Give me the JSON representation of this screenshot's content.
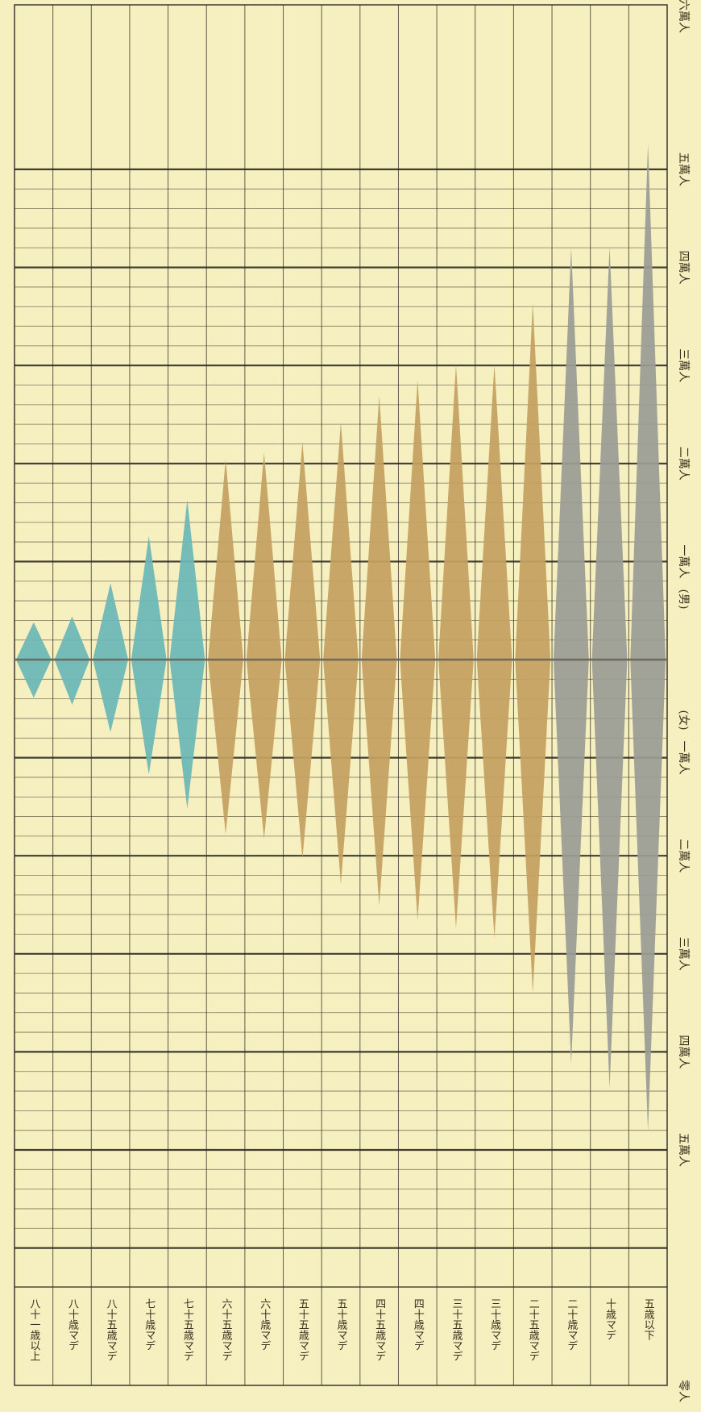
{
  "chart_data": {
    "type": "population_pyramid",
    "orientation": "rotated",
    "axis_labels": [
      "五萬人",
      "四萬人",
      "三萬人",
      "二萬人",
      "一萬人",
      "一萬人",
      "二萬人",
      "三萬人",
      "四萬人",
      "五萬人",
      "六萬人"
    ],
    "sex_labels": {
      "female": "(女)",
      "male": "(男)"
    },
    "axis_end_label": "六萬人",
    "axis_start_label": "零人",
    "unit_people": 10000,
    "colors": {
      "young": "#c4a060",
      "old": "#6ab8b8",
      "child": "#9a9c94",
      "paper": "#f6efbf",
      "grid": "#2e2a22"
    },
    "categories": [
      {
        "label": "八十一歳以上",
        "group": "old",
        "male": 3800,
        "female": 3900
      },
      {
        "label": "八十歳マデ",
        "group": "old",
        "male": 4400,
        "female": 4600
      },
      {
        "label": "八十五歳マデ",
        "group": "old",
        "male": 7800,
        "female": 7400
      },
      {
        "label": "七十歳マデ",
        "group": "old",
        "male": 12600,
        "female": 11700
      },
      {
        "label": "七十五歳マデ",
        "group": "old",
        "male": 16300,
        "female": 15200
      },
      {
        "label": "六十五歳マデ",
        "group": "young",
        "male": 20400,
        "female": 17800
      },
      {
        "label": "六十歳マデ",
        "group": "young",
        "male": 21100,
        "female": 18300
      },
      {
        "label": "五十五歳マデ",
        "group": "young",
        "male": 22200,
        "female": 20300
      },
      {
        "label": "五十歳マデ",
        "group": "young",
        "male": 24200,
        "female": 22900
      },
      {
        "label": "四十五歳マデ",
        "group": "young",
        "male": 26900,
        "female": 25100
      },
      {
        "label": "四十歳マデ",
        "group": "young",
        "male": 28500,
        "female": 26600
      },
      {
        "label": "三十五歳マデ",
        "group": "young",
        "male": 30100,
        "female": 27400
      },
      {
        "label": "三十歳マデ",
        "group": "young",
        "male": 30100,
        "female": 28400
      },
      {
        "label": "二十五歳マデ",
        "group": "young",
        "male": 36400,
        "female": 34000
      },
      {
        "label": "二十歳マデ",
        "group": "child",
        "male": 42000,
        "female": 41200
      },
      {
        "label": "十歳マデ",
        "group": "child",
        "male": 42100,
        "female": 43700
      },
      {
        "label": "五歳以下",
        "group": "child",
        "male": 52600,
        "female": 48100
      }
    ]
  }
}
